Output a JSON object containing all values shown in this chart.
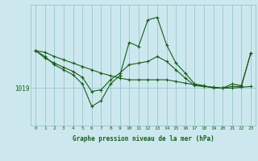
{
  "background_color": "#cce8ee",
  "plot_bg_color": "#cce8ee",
  "grid_color": "#8bbfc8",
  "line_color": "#1a5c1a",
  "marker_color": "#1a5c1a",
  "title": "Graphe pression niveau de la mer (hPa)",
  "ylabel_text": "1019",
  "ylabel_value": 1019,
  "xlabel_ticks": [
    0,
    1,
    2,
    3,
    4,
    5,
    6,
    7,
    8,
    9,
    10,
    11,
    12,
    13,
    14,
    15,
    16,
    17,
    18,
    19,
    20,
    21,
    22,
    23
  ],
  "series1": [
    1023.5,
    1023.3,
    1022.8,
    1022.4,
    1022.0,
    1021.6,
    1021.2,
    1020.8,
    1020.5,
    1020.2,
    1020.0,
    1020.0,
    1020.0,
    1020.0,
    1020.0,
    1019.8,
    1019.6,
    1019.4,
    1019.2,
    1019.1,
    1019.0,
    1019.0,
    1019.1,
    1019.2
  ],
  "series2": [
    1023.5,
    1022.8,
    1021.8,
    1021.2,
    1020.6,
    1019.5,
    1016.8,
    1017.5,
    1019.5,
    1020.5,
    1024.5,
    1024.0,
    1027.2,
    1027.5,
    1024.2,
    1022.0,
    1020.8,
    1019.5,
    1019.3,
    1019.0,
    1019.0,
    1019.2,
    1019.2,
    1023.2
  ],
  "series3": [
    1023.5,
    1022.6,
    1022.0,
    1021.5,
    1021.0,
    1020.3,
    1018.6,
    1018.8,
    1020.0,
    1020.8,
    1021.8,
    1022.0,
    1022.2,
    1022.8,
    1022.2,
    1021.2,
    1020.2,
    1019.3,
    1019.2,
    1019.1,
    1019.0,
    1019.5,
    1019.3,
    1023.2
  ],
  "ylim_min": 1014.5,
  "ylim_max": 1029.0,
  "ytick_value": 1019,
  "figw": 3.2,
  "figh": 2.0,
  "dpi": 100
}
